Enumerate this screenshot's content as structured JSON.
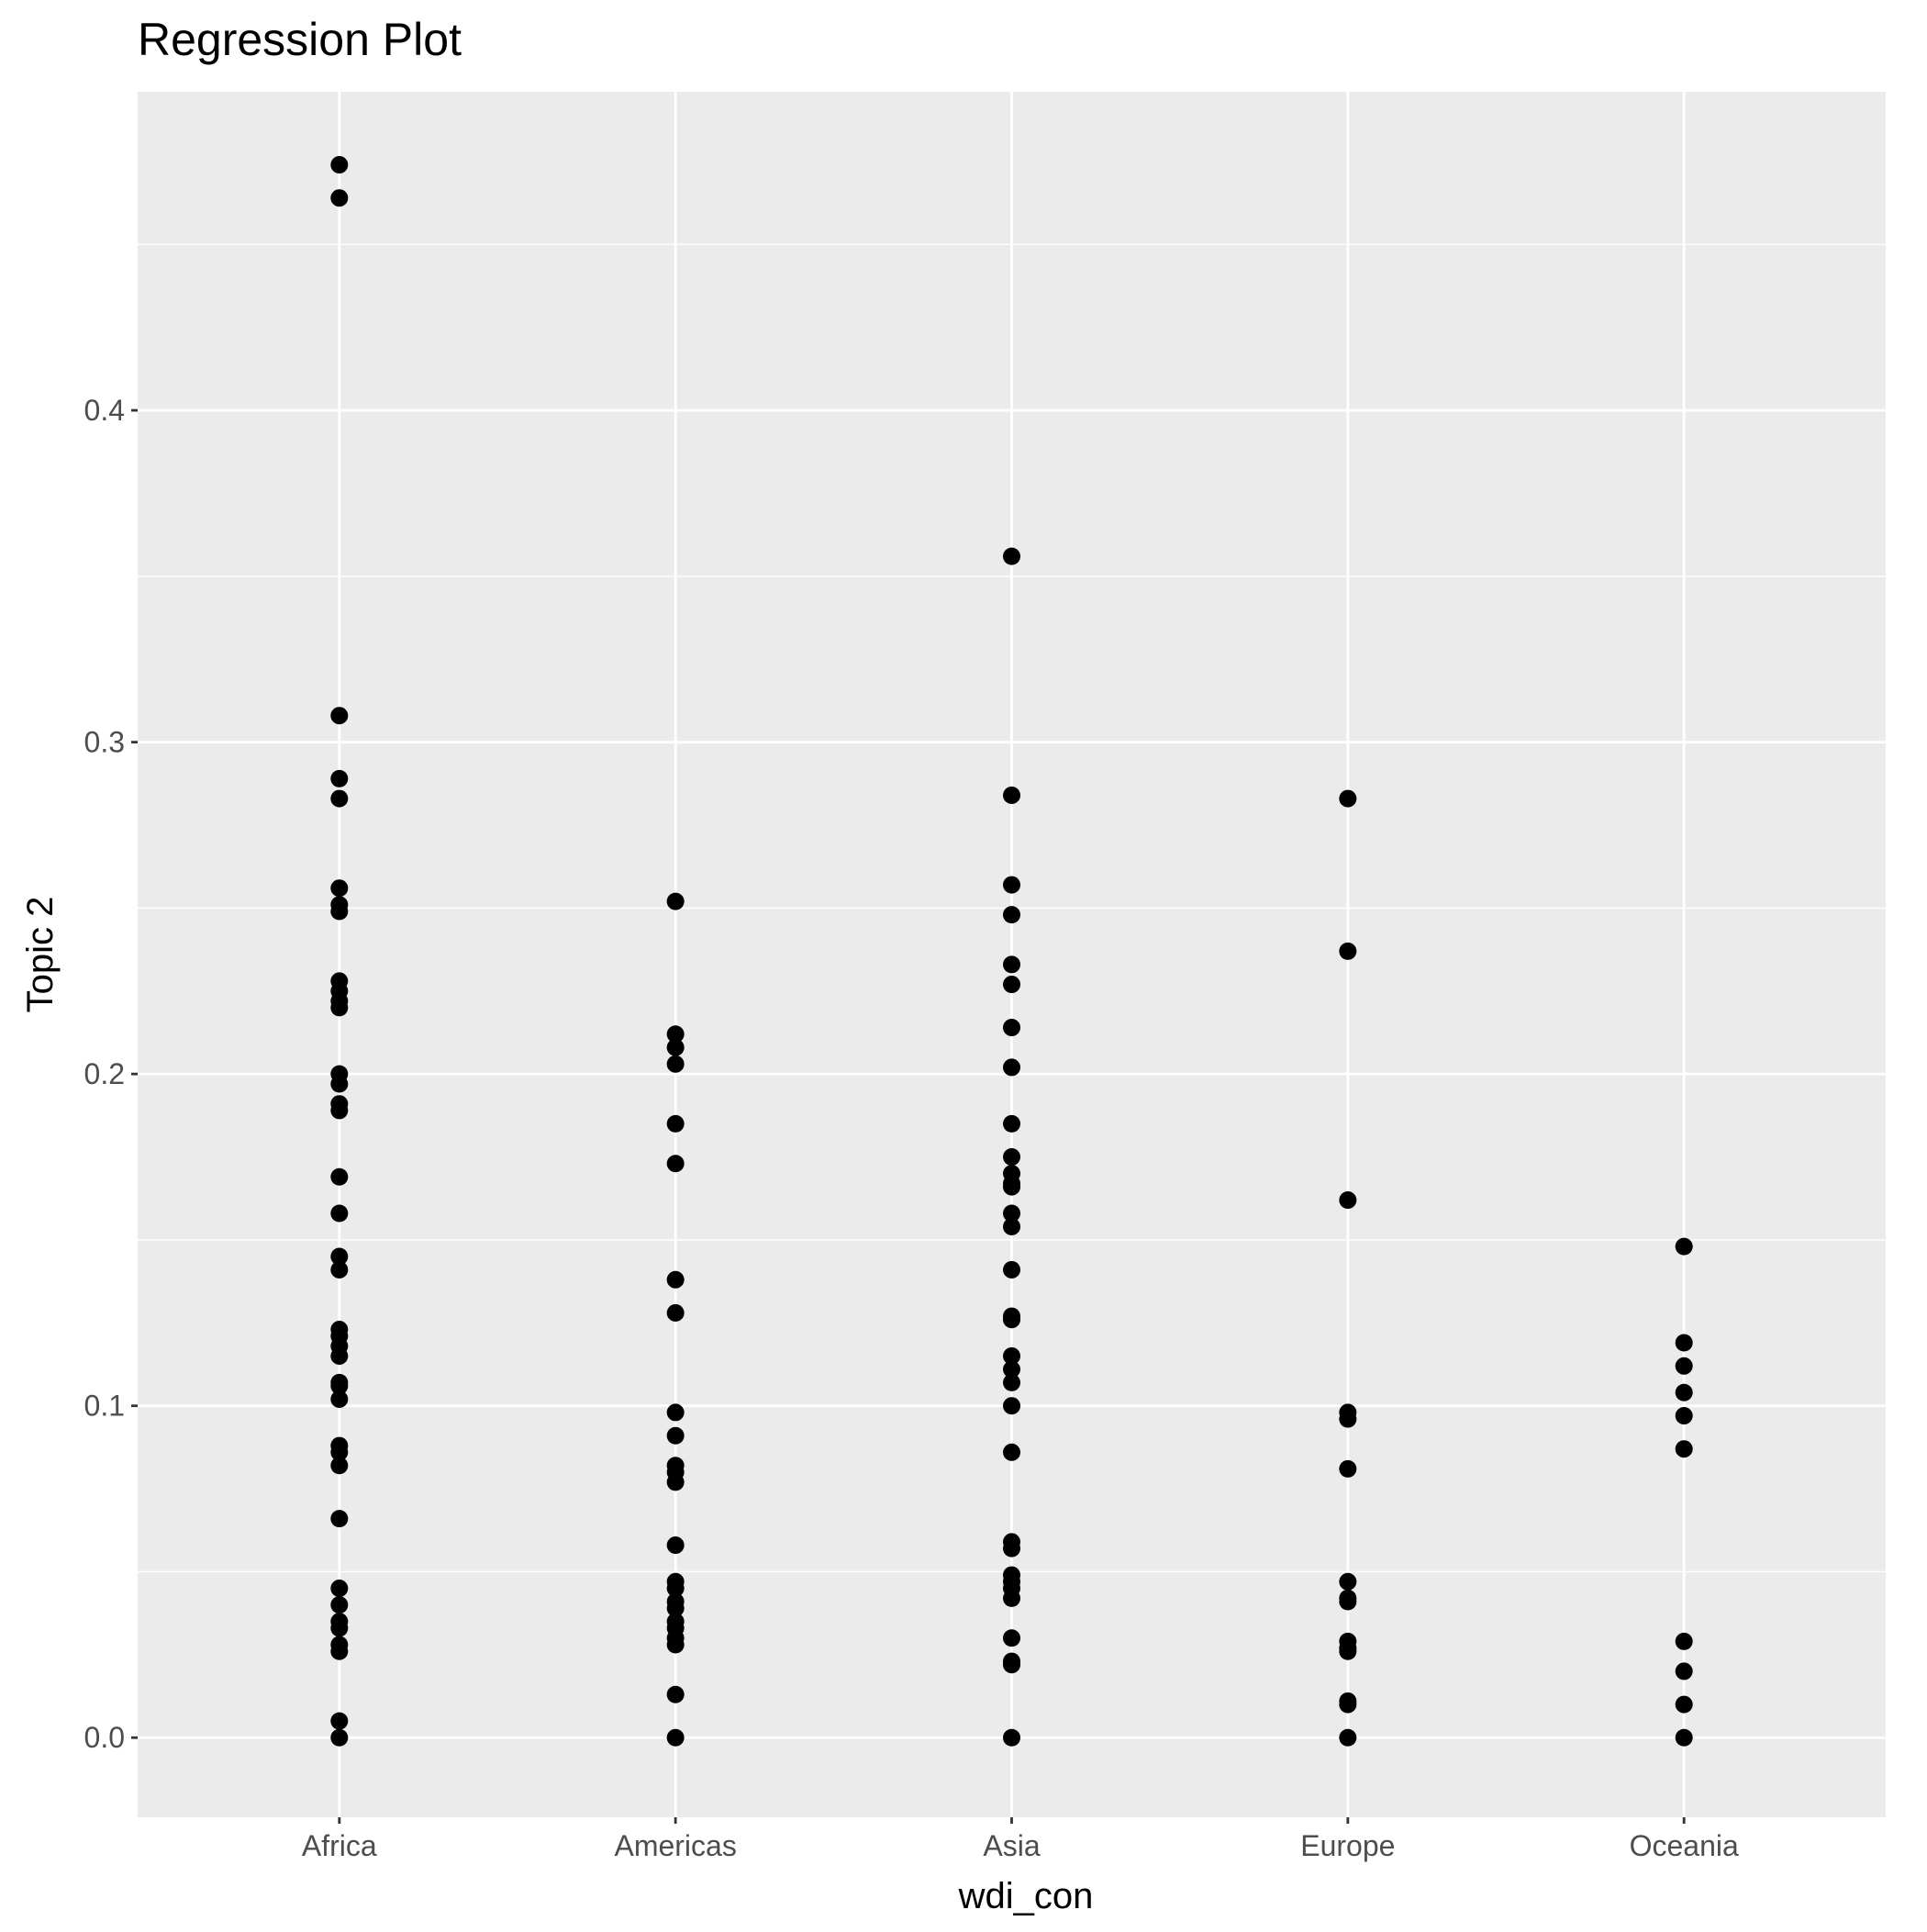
{
  "chart_data": {
    "type": "scatter",
    "title": "Regression Plot",
    "xlabel": "wdi_con",
    "ylabel": "Topic 2",
    "categories": [
      "Africa",
      "Americas",
      "Asia",
      "Europe",
      "Oceania"
    ],
    "ylim": [
      -0.024,
      0.496
    ],
    "yticks": [
      "0.0",
      "0.1",
      "0.2",
      "0.3",
      "0.4"
    ],
    "grid": true,
    "legend": "none",
    "colors": {
      "panel": "#ebebeb",
      "grid": "#ffffff",
      "point": "#000000",
      "tick_text": "#4d4d4d"
    },
    "points": {
      "Africa": [
        0.474,
        0.464,
        0.308,
        0.289,
        0.283,
        0.256,
        0.251,
        0.249,
        0.228,
        0.225,
        0.222,
        0.22,
        0.2,
        0.197,
        0.191,
        0.189,
        0.169,
        0.158,
        0.145,
        0.141,
        0.123,
        0.121,
        0.118,
        0.115,
        0.107,
        0.106,
        0.102,
        0.088,
        0.086,
        0.082,
        0.066,
        0.045,
        0.04,
        0.035,
        0.033,
        0.028,
        0.026,
        0.005,
        0.0
      ],
      "Americas": [
        0.252,
        0.212,
        0.208,
        0.203,
        0.185,
        0.173,
        0.138,
        0.128,
        0.098,
        0.091,
        0.082,
        0.08,
        0.077,
        0.058,
        0.047,
        0.045,
        0.041,
        0.039,
        0.035,
        0.033,
        0.03,
        0.028,
        0.013,
        0.0
      ],
      "Asia": [
        0.356,
        0.284,
        0.257,
        0.248,
        0.233,
        0.227,
        0.214,
        0.202,
        0.185,
        0.175,
        0.17,
        0.167,
        0.166,
        0.158,
        0.154,
        0.141,
        0.127,
        0.126,
        0.115,
        0.111,
        0.107,
        0.1,
        0.086,
        0.059,
        0.057,
        0.049,
        0.047,
        0.045,
        0.042,
        0.03,
        0.023,
        0.022,
        0.0
      ],
      "Europe": [
        0.283,
        0.237,
        0.162,
        0.098,
        0.096,
        0.081,
        0.047,
        0.042,
        0.041,
        0.029,
        0.027,
        0.026,
        0.011,
        0.01,
        0.0
      ],
      "Oceania": [
        0.148,
        0.119,
        0.112,
        0.104,
        0.097,
        0.087,
        0.029,
        0.02,
        0.01,
        0.0
      ]
    }
  }
}
